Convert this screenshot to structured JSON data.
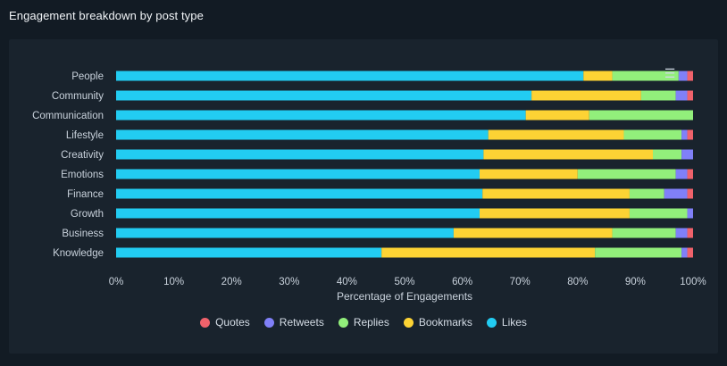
{
  "header": {
    "title": "Engagement breakdown by post type"
  },
  "menu": {
    "icon": "hamburger-menu-icon"
  },
  "chart_data": {
    "type": "bar",
    "orientation": "horizontal",
    "stacked": "percent",
    "title": "Engagement breakdown by post type",
    "xlabel": "Percentage of Engagements",
    "ylabel": "",
    "xlim": [
      0,
      100
    ],
    "x_ticks": [
      "0%",
      "10%",
      "20%",
      "30%",
      "40%",
      "50%",
      "60%",
      "70%",
      "80%",
      "90%",
      "100%"
    ],
    "categories": [
      "People",
      "Community",
      "Communication",
      "Lifestyle",
      "Creativity",
      "Emotions",
      "Finance",
      "Growth",
      "Business",
      "Knowledge"
    ],
    "series": [
      {
        "name": "Likes",
        "color": "#22ccf2",
        "values": [
          81,
          72,
          71,
          64.5,
          64,
          63,
          63.5,
          63,
          58.5,
          46
        ]
      },
      {
        "name": "Bookmarks",
        "color": "#fdd334",
        "values": [
          5,
          19,
          11,
          23.5,
          29.5,
          17,
          25.5,
          26,
          27.5,
          37
        ]
      },
      {
        "name": "Replies",
        "color": "#92ef7b",
        "values": [
          11.5,
          6,
          18,
          10,
          5,
          17,
          6,
          10,
          11,
          15
        ]
      },
      {
        "name": "Retweets",
        "color": "#8080f8",
        "values": [
          1.5,
          2,
          0,
          1,
          2,
          2,
          4,
          1,
          2,
          1
        ]
      },
      {
        "name": "Quotes",
        "color": "#f0626b",
        "values": [
          1,
          1,
          0,
          1,
          0,
          1,
          1,
          0,
          1,
          1
        ]
      }
    ],
    "legend": {
      "position": "bottom",
      "order": [
        "Quotes",
        "Retweets",
        "Replies",
        "Bookmarks",
        "Likes"
      ]
    },
    "grid": false
  }
}
